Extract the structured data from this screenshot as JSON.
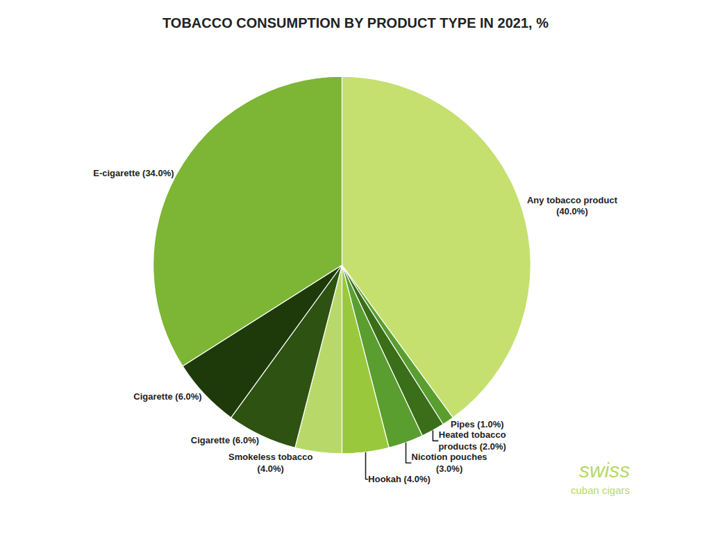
{
  "chart_data": {
    "type": "pie",
    "title": "TOBACCO CONSUMPTION BY PRODUCT TYPE IN 2021, %",
    "categories": [
      "Any tobacco product\n(40.0%)",
      "Pipes (1.0%)",
      "Heated tobacco\nproducts (2.0%)",
      "Nicotion pouches\n(3.0%)",
      "Hookah (4.0%)",
      "Smokeless tobacco\n(4.0%)",
      "Cigarette (6.0%)",
      "Cigarette (6.0%)",
      "E-cigarette (34.0%)"
    ],
    "values": [
      40.0,
      1.0,
      2.0,
      3.0,
      4.0,
      4.0,
      6.0,
      6.0,
      34.0
    ],
    "colors": [
      "#c5e06e",
      "#5a9e30",
      "#3a6e18",
      "#5a9e30",
      "#9ac83c",
      "#b8d96a",
      "#2d5212",
      "#1e3a0a",
      "#7db535"
    ],
    "annotations": [
      "swiss",
      "cuban cigars"
    ]
  }
}
